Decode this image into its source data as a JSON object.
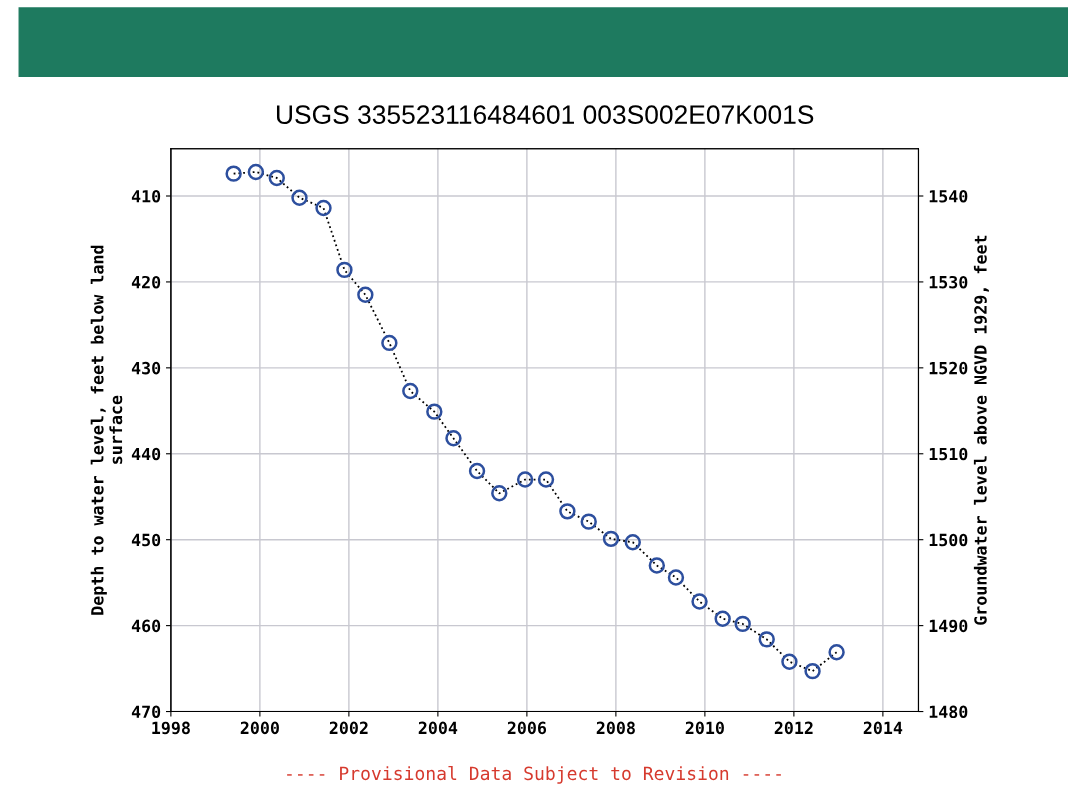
{
  "chart_data": {
    "type": "line",
    "title": "USGS 335523116484601 003S002E07K001S",
    "ylabel": "Depth to water level, feet below land\nsurface",
    "y2label": "Groundwater level above NGVD 1929, feet",
    "x": [
      1999.41,
      1999.91,
      2000.38,
      2000.89,
      2001.43,
      2001.9,
      2002.37,
      2002.91,
      2003.38,
      2003.92,
      2004.35,
      2004.88,
      2005.38,
      2005.96,
      2006.43,
      2006.91,
      2007.39,
      2007.89,
      2008.38,
      2008.92,
      2009.35,
      2009.88,
      2010.4,
      2010.85,
      2011.39,
      2011.9,
      2012.42,
      2012.96
    ],
    "series": [
      {
        "color": "#2d4f9e",
        "values": [
          407.4,
          407.2,
          407.9,
          410.2,
          411.4,
          418.6,
          421.5,
          427.1,
          432.7,
          435.1,
          438.2,
          442.0,
          444.6,
          443.0,
          443.0,
          446.7,
          447.9,
          449.9,
          450.3,
          453.0,
          454.4,
          457.2,
          459.2,
          459.8,
          461.6,
          464.2,
          465.3,
          463.1
        ]
      }
    ],
    "xlim": [
      1998,
      2014.8
    ],
    "xticks": [
      1998,
      2000,
      2002,
      2004,
      2006,
      2008,
      2010,
      2012,
      2014
    ],
    "ylim": [
      470,
      404.5
    ],
    "yticks": [
      410,
      420,
      430,
      440,
      450,
      460,
      470
    ],
    "y2lim": [
      1480,
      1545.5
    ],
    "y2ticks": [
      1480,
      1490,
      1500,
      1510,
      1520,
      1530,
      1540
    ],
    "grid": true,
    "marker": "circle",
    "line_style": "dotted",
    "legend": false,
    "annotations": [
      "---- Provisional Data Subject to Revision ----"
    ]
  }
}
